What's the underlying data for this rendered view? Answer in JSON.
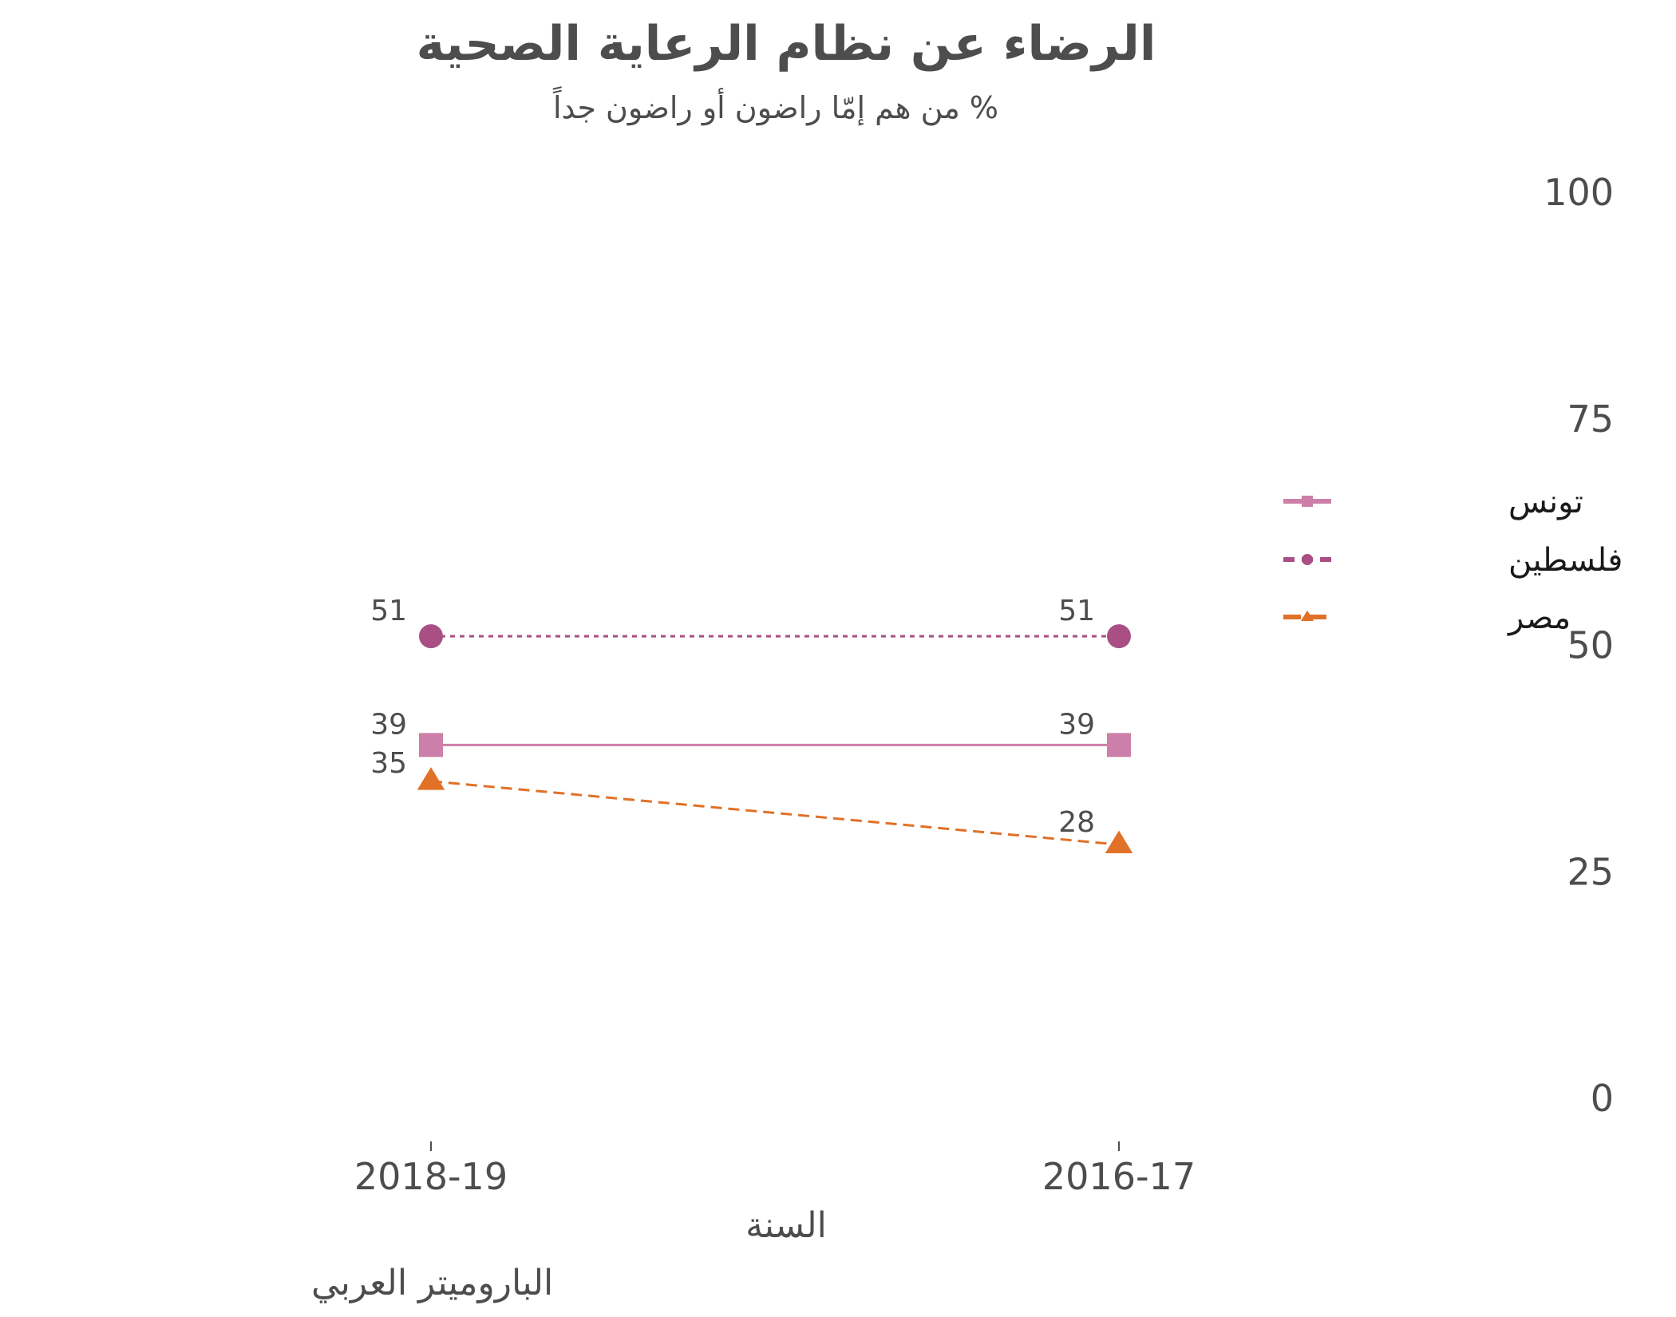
{
  "chart_data": {
    "type": "line",
    "title": "الرضاء عن نظام الرعاية الصحية",
    "subtitle": "% من هم  إمّا راضون  أو راضون جداً",
    "xlabel": "السنة",
    "caption": "الباروميتر العربي",
    "categories": [
      "2018-19",
      "2016-17"
    ],
    "ylim": [
      0,
      100
    ],
    "yticks": [
      0,
      25,
      50,
      75,
      100
    ],
    "y_axis_side": "right",
    "grid": false,
    "legend_position": "right",
    "series": [
      {
        "name": "تونس",
        "values": [
          39,
          39
        ],
        "color": "#cc7fa8",
        "marker": "square",
        "line": "solid",
        "labels": [
          "39",
          "39"
        ]
      },
      {
        "name": "فلسطين",
        "values": [
          51,
          51
        ],
        "color": "#a94f83",
        "marker": "circle",
        "line": "dotted",
        "labels": [
          "51",
          "51"
        ]
      },
      {
        "name": "مصر",
        "values": [
          35,
          28
        ],
        "color": "#e07127",
        "marker": "triangle",
        "line": "dashed",
        "labels": [
          "35",
          "28"
        ]
      }
    ]
  }
}
